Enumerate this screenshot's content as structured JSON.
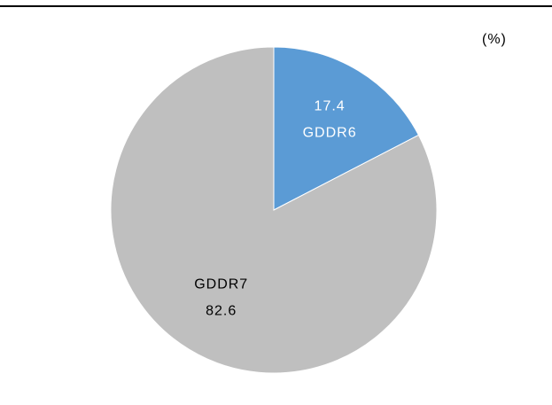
{
  "chart_data": {
    "type": "pie",
    "unit": "(%)",
    "slices": [
      {
        "label": "GDDR6",
        "value": 17.4,
        "value_text": "17.4",
        "color": "#5B9BD5",
        "text_color": "#ffffff"
      },
      {
        "label": "GDDR7",
        "value": 82.6,
        "value_text": "82.6",
        "color": "#BFBFBF",
        "text_color": "#000000"
      }
    ]
  }
}
